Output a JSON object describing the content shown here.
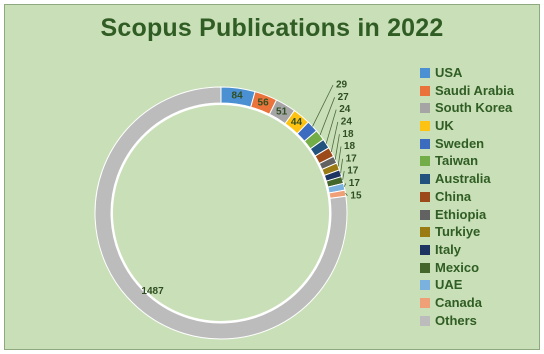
{
  "chart_data": {
    "type": "pie",
    "style": "donut",
    "title": "Scopus Publications in 2022",
    "legend_position": "right",
    "categories": [
      "USA",
      "Saudi Arabia",
      "South Korea",
      "UK",
      "Sweden",
      "Taiwan",
      "Australia",
      "China",
      "Ethiopia",
      "Turkiye",
      "Italy",
      "Mexico",
      "UAE",
      "Canada",
      "Others"
    ],
    "values": [
      84,
      56,
      51,
      44,
      29,
      27,
      24,
      24,
      18,
      18,
      17,
      17,
      17,
      15,
      1487
    ],
    "colors": [
      "#4a90d2",
      "#e9733a",
      "#a5a5a5",
      "#fdc212",
      "#3b6cc0",
      "#72ad47",
      "#24527e",
      "#9c4a1a",
      "#626262",
      "#9a7a12",
      "#1e3461",
      "#44662a",
      "#7ab1de",
      "#f0a077",
      "#bcbcbc"
    ]
  }
}
